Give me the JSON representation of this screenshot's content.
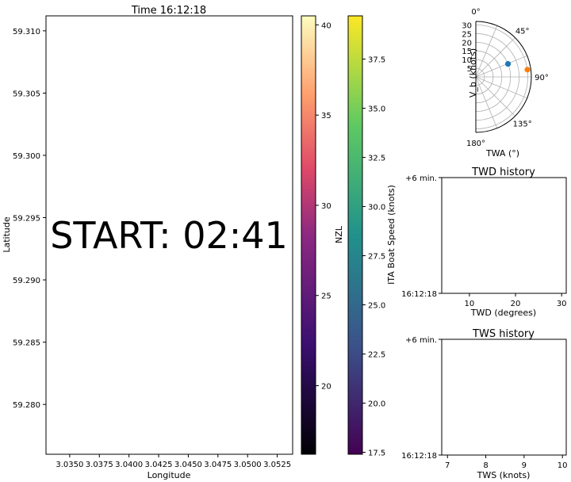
{
  "colors": {
    "nzl_start": "#000004",
    "nzl_mid1": "#3b0f70",
    "nzl_mid2": "#8c2981",
    "nzl_mid3": "#de4968",
    "nzl_mid4": "#fe9f6d",
    "nzl_end": "#fcfdbf",
    "ita_start": "#440154",
    "ita_mid1": "#3b528b",
    "ita_mid2": "#21918c",
    "ita_mid3": "#5ec962",
    "ita_end": "#fde725",
    "watermark": "#dddddd",
    "point_blue": "#1f77b4",
    "point_orange": "#ff7f0e"
  },
  "chart_data": [
    {
      "type": "scatter",
      "title": "Time 16:12:18",
      "xlabel": "Longitude",
      "ylabel": "Latitude",
      "xlim": [
        3.033,
        3.0538
      ],
      "ylim": [
        59.276,
        59.3112
      ],
      "xticks": [
        "3.0350",
        "3.0375",
        "3.0400",
        "3.0425",
        "3.0450",
        "3.0475",
        "3.0500",
        "3.0525"
      ],
      "xtick_values": [
        3.035,
        3.0375,
        3.04,
        3.0425,
        3.045,
        3.0475,
        3.05,
        3.0525
      ],
      "yticks": [
        "59.280",
        "59.285",
        "59.290",
        "59.295",
        "59.300",
        "59.305",
        "59.310"
      ],
      "ytick_values": [
        59.28,
        59.285,
        59.29,
        59.295,
        59.3,
        59.305,
        59.31
      ],
      "watermark": "START: 02:41",
      "series": []
    },
    {
      "type": "heatmap",
      "label": "NZL",
      "colormap": "magma",
      "range": [
        16.2,
        40.5
      ],
      "ticks": [
        "20",
        "25",
        "30",
        "35",
        "40"
      ],
      "tick_values": [
        20,
        25,
        30,
        35,
        40
      ]
    },
    {
      "type": "heatmap",
      "label": "ITA Boat Speed (knots)",
      "colormap": "viridis",
      "range": [
        17.4,
        39.7
      ],
      "ticks": [
        "17.5",
        "20.0",
        "22.5",
        "25.0",
        "27.5",
        "30.0",
        "32.5",
        "35.0",
        "37.5"
      ],
      "tick_values": [
        17.5,
        20.0,
        22.5,
        25.0,
        27.5,
        30.0,
        32.5,
        35.0,
        37.5
      ]
    },
    {
      "type": "scatter",
      "polar": true,
      "xlabel": "TWA (°)",
      "ylabel": "V_b (knots)",
      "rlim": [
        0,
        32
      ],
      "rticks": [
        "5",
        "10",
        "15",
        "20",
        "25",
        "30"
      ],
      "rtick_values": [
        5,
        10,
        15,
        20,
        25,
        30
      ],
      "theta_ticks": [
        "0°",
        "45°",
        "90°",
        "135°",
        "180°"
      ],
      "theta_values": [
        0,
        45,
        90,
        135,
        180
      ],
      "points": [
        {
          "twa": 68,
          "speed": 20,
          "color": "#1f77b4"
        },
        {
          "twa": 82,
          "speed": 30,
          "color": "#ff7f0e"
        }
      ]
    },
    {
      "type": "line",
      "title": "TWD history",
      "xlabel": "TWD (degrees)",
      "xlim": [
        4,
        31
      ],
      "xticks": [
        "10",
        "20",
        "30"
      ],
      "xtick_values": [
        10,
        20,
        30
      ],
      "yticks": [
        "+6 min.",
        "16:12:18"
      ],
      "series": []
    },
    {
      "type": "line",
      "title": "TWS history",
      "xlabel": "TWS (knots)",
      "xlim": [
        6.85,
        10.1
      ],
      "xticks": [
        "7",
        "8",
        "9",
        "10"
      ],
      "xtick_values": [
        7,
        8,
        9,
        10
      ],
      "yticks": [
        "+6 min.",
        "16:12:18"
      ],
      "series": []
    }
  ]
}
